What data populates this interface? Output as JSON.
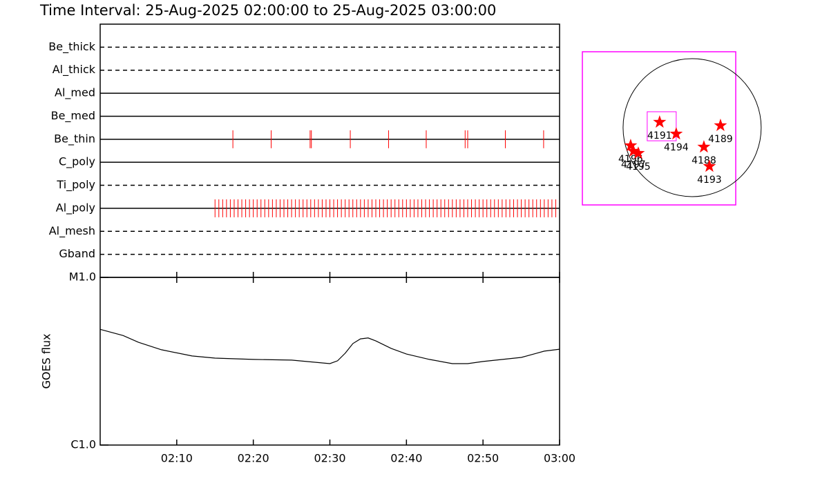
{
  "chart_data": [
    {
      "type": "timeline",
      "title": "Time Interval: 25-Aug-2025 02:00:00 to 25-Aug-2025 03:00:00",
      "categories": [
        "Be_thick",
        "Al_thick",
        "Al_med",
        "Be_med",
        "Be_thin",
        "C_poly",
        "Ti_poly",
        "Al_poly",
        "Al_mesh",
        "Gband"
      ],
      "line_styles": [
        "dashed",
        "dashed",
        "solid",
        "solid",
        "solid",
        "solid",
        "dashed",
        "solid",
        "dashed",
        "dashed"
      ],
      "color": "#ff0000",
      "xlim": [
        "02:00:00",
        "03:00:00"
      ],
      "events": [
        [],
        [],
        [],
        [],
        [
          "02:17:20",
          "02:22:20",
          "02:27:25",
          "02:27:35",
          "02:32:40",
          "02:37:40",
          "02:42:35",
          "02:47:40",
          "02:48:00",
          "02:52:55",
          "02:57:55"
        ],
        [],
        [],
        [
          "02:15:00",
          "02:15:30",
          "02:16:00",
          "02:16:30",
          "02:17:00",
          "02:17:30",
          "02:18:00",
          "02:18:30",
          "02:19:00",
          "02:19:30",
          "02:20:00",
          "02:20:30",
          "02:21:00",
          "02:21:30",
          "02:22:00",
          "02:22:30",
          "02:23:00",
          "02:23:30",
          "02:24:00",
          "02:24:30",
          "02:25:00",
          "02:25:30",
          "02:26:00",
          "02:26:30",
          "02:27:00",
          "02:27:30",
          "02:28:00",
          "02:28:30",
          "02:29:00",
          "02:29:30",
          "02:30:00",
          "02:30:30",
          "02:31:00",
          "02:31:30",
          "02:32:00",
          "02:32:30",
          "02:33:00",
          "02:33:30",
          "02:34:00",
          "02:34:30",
          "02:35:00",
          "02:35:30",
          "02:36:00",
          "02:36:30",
          "02:37:00",
          "02:37:30",
          "02:38:00",
          "02:38:30",
          "02:39:00",
          "02:39:30",
          "02:40:00",
          "02:40:30",
          "02:41:00",
          "02:41:30",
          "02:42:00",
          "02:42:30",
          "02:43:00",
          "02:43:30",
          "02:44:00",
          "02:44:30",
          "02:45:00",
          "02:45:30",
          "02:46:00",
          "02:46:30",
          "02:47:00",
          "02:47:30",
          "02:48:00",
          "02:48:30",
          "02:49:00",
          "02:49:30",
          "02:50:00",
          "02:50:30",
          "02:51:00",
          "02:51:30",
          "02:52:00",
          "02:52:30",
          "02:53:00",
          "02:53:30",
          "02:54:00",
          "02:54:30",
          "02:55:00",
          "02:55:30",
          "02:56:00",
          "02:56:30",
          "02:57:00",
          "02:57:30",
          "02:58:00",
          "02:58:30",
          "02:59:00",
          "02:59:30"
        ],
        [],
        []
      ]
    },
    {
      "type": "line",
      "ylabel": "GOES flux",
      "color": "#000000",
      "log": true,
      "x": [
        "02:00",
        "02:03",
        "02:05",
        "02:08",
        "02:12",
        "02:15",
        "02:20",
        "02:25",
        "02:30",
        "02:31",
        "02:32",
        "02:33",
        "02:34",
        "02:35",
        "02:36",
        "02:38",
        "02:40",
        "02:43",
        "02:46",
        "02:48",
        "02:50",
        "02:55",
        "02:57",
        "02:58",
        "03:00"
      ],
      "values": [
        4.9e-06,
        4.5e-06,
        4.1e-06,
        3.7e-06,
        3.4e-06,
        3.3e-06,
        3.24e-06,
        3.21e-06,
        3.06e-06,
        3.18e-06,
        3.53e-06,
        4.03e-06,
        4.3e-06,
        4.35e-06,
        4.18e-06,
        3.77e-06,
        3.49e-06,
        3.24e-06,
        3.06e-06,
        3.06e-06,
        3.15e-06,
        3.33e-06,
        3.53e-06,
        3.63e-06,
        3.73e-06
      ],
      "xlim": [
        "02:00",
        "03:00"
      ],
      "xticks": [
        "02:10",
        "02:20",
        "02:30",
        "02:40",
        "02:50",
        "03:00"
      ],
      "ylim": [
        1e-06,
        1e-05
      ],
      "yticks": [
        {
          "value": 1e-06,
          "label": "C1.0"
        },
        {
          "value": 1e-05,
          "label": "M1.0"
        }
      ]
    },
    {
      "type": "scatter",
      "color": "#ff0000",
      "frame_color": "#ff00ff",
      "xlim": [
        -1510,
        600
      ],
      "ylim": [
        -1064,
        1045
      ],
      "disk_radius": 950,
      "fov": {
        "x": [
          -618,
          -219
        ],
        "y": [
          -181,
          219
        ]
      },
      "regions": [
        {
          "label": "4191",
          "x": -447,
          "y": 76
        },
        {
          "label": "4194",
          "x": -219,
          "y": -86
        },
        {
          "label": "4189",
          "x": 390,
          "y": 29
        },
        {
          "label": "4188",
          "x": 162,
          "y": -266
        },
        {
          "label": "4193",
          "x": 238,
          "y": -532
        },
        {
          "label": "4196",
          "x": -846,
          "y": -247
        },
        {
          "label": "4197",
          "x": -808,
          "y": -323
        },
        {
          "label": "4195",
          "x": -741,
          "y": -352
        }
      ]
    }
  ]
}
